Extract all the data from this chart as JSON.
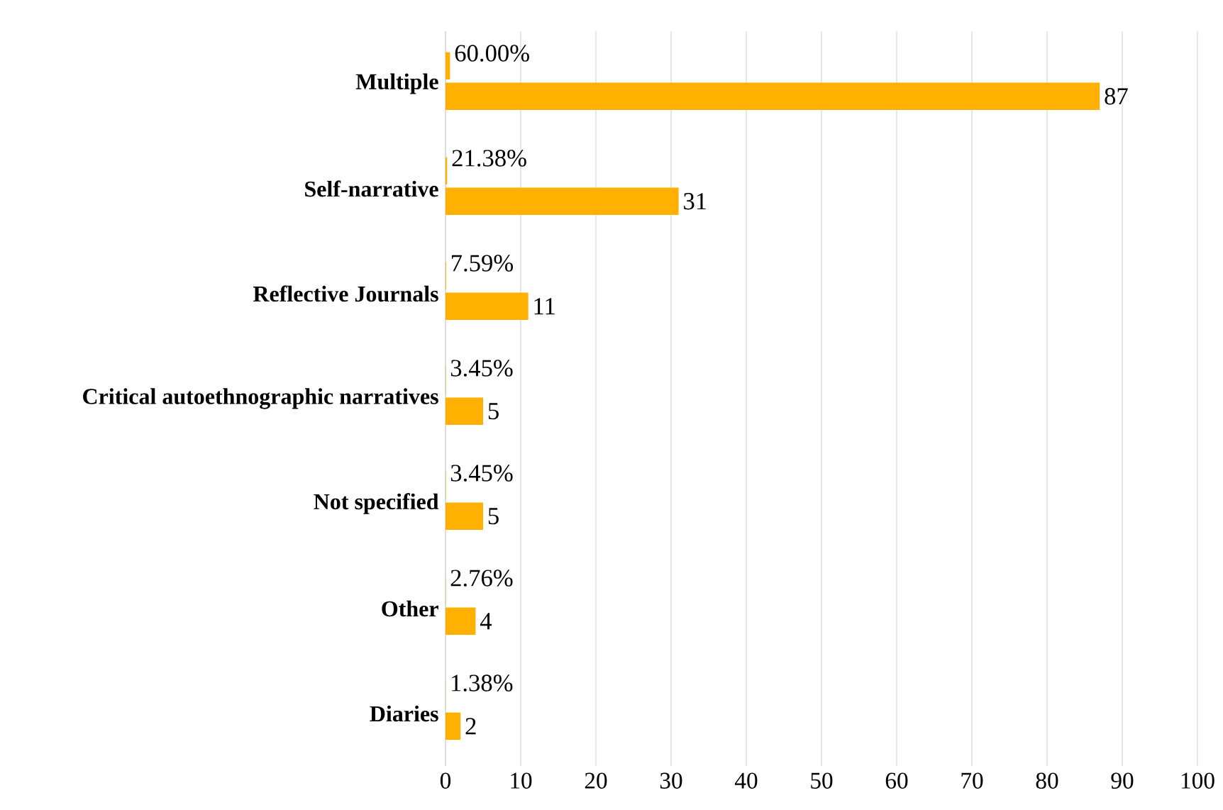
{
  "chart_data": {
    "type": "bar",
    "orientation": "horizontal",
    "categories": [
      "Multiple",
      "Self-narrative",
      "Reflective Journals",
      "Critical autoethnographic narratives",
      "Not specified",
      "Other",
      "Diaries"
    ],
    "series": [
      {
        "color": "#ffb000",
        "values": [
          0.6,
          0.2138,
          0.0759,
          0.0345,
          0.0345,
          0.0276,
          0.0138
        ],
        "value_labels": [
          "60.00%",
          "21.38%",
          "7.59%",
          "3.45%",
          "3.45%",
          "2.76%",
          "1.38%"
        ]
      },
      {
        "color": "#ffb000",
        "values": [
          87,
          31,
          11,
          5,
          5,
          4,
          2
        ],
        "value_labels": [
          "87",
          "31",
          "11",
          "5",
          "5",
          "4",
          "2"
        ]
      }
    ],
    "xlim": [
      0,
      100
    ],
    "xticks": [
      0,
      10,
      20,
      30,
      40,
      50,
      60,
      70,
      80,
      90,
      100
    ],
    "grid": "x"
  }
}
